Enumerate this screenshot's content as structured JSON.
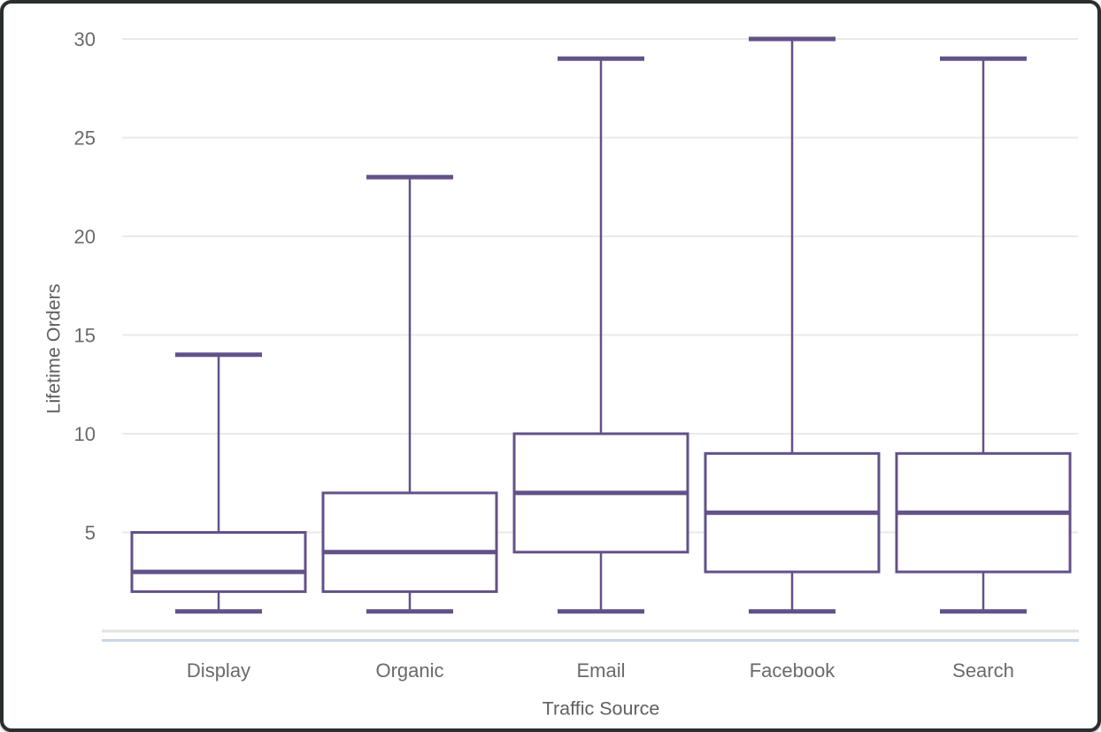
{
  "window": {
    "background_color": "#ffffff",
    "frame_border_color": "#2a2e2e"
  },
  "chart_data": {
    "type": "box",
    "title": "",
    "xlabel": "Traffic Source",
    "ylabel": "Lifetime Orders",
    "categories": [
      "Display",
      "Organic",
      "Email",
      "Facebook",
      "Search"
    ],
    "series": [
      {
        "name": "Display",
        "min": 1,
        "q1": 2,
        "median": 3,
        "q3": 5,
        "max": 14
      },
      {
        "name": "Organic",
        "min": 1,
        "q1": 2,
        "median": 4,
        "q3": 7,
        "max": 23
      },
      {
        "name": "Email",
        "min": 1,
        "q1": 4,
        "median": 7,
        "q3": 10,
        "max": 29
      },
      {
        "name": "Facebook",
        "min": 1,
        "q1": 3,
        "median": 6,
        "q3": 9,
        "max": 30
      },
      {
        "name": "Search",
        "min": 1,
        "q1": 3,
        "median": 6,
        "q3": 9,
        "max": 29
      }
    ],
    "y_ticks": [
      5,
      10,
      15,
      20,
      25,
      30
    ],
    "y_tick_labels": [
      "5",
      "10",
      "15",
      "20",
      "25",
      "30"
    ],
    "ylim": [
      0,
      31.5
    ],
    "grid": "horizontal",
    "legend_position": "none",
    "colors": {
      "box_stroke": "#635189",
      "box_fill": "#ffffff",
      "gridline": "#e9e9e9",
      "axis_baseline": "#e2e2e2",
      "accent_underline": "#ccd5e8",
      "tick_text": "#6a6a6a",
      "axis_title_text": "#615e5e"
    }
  }
}
